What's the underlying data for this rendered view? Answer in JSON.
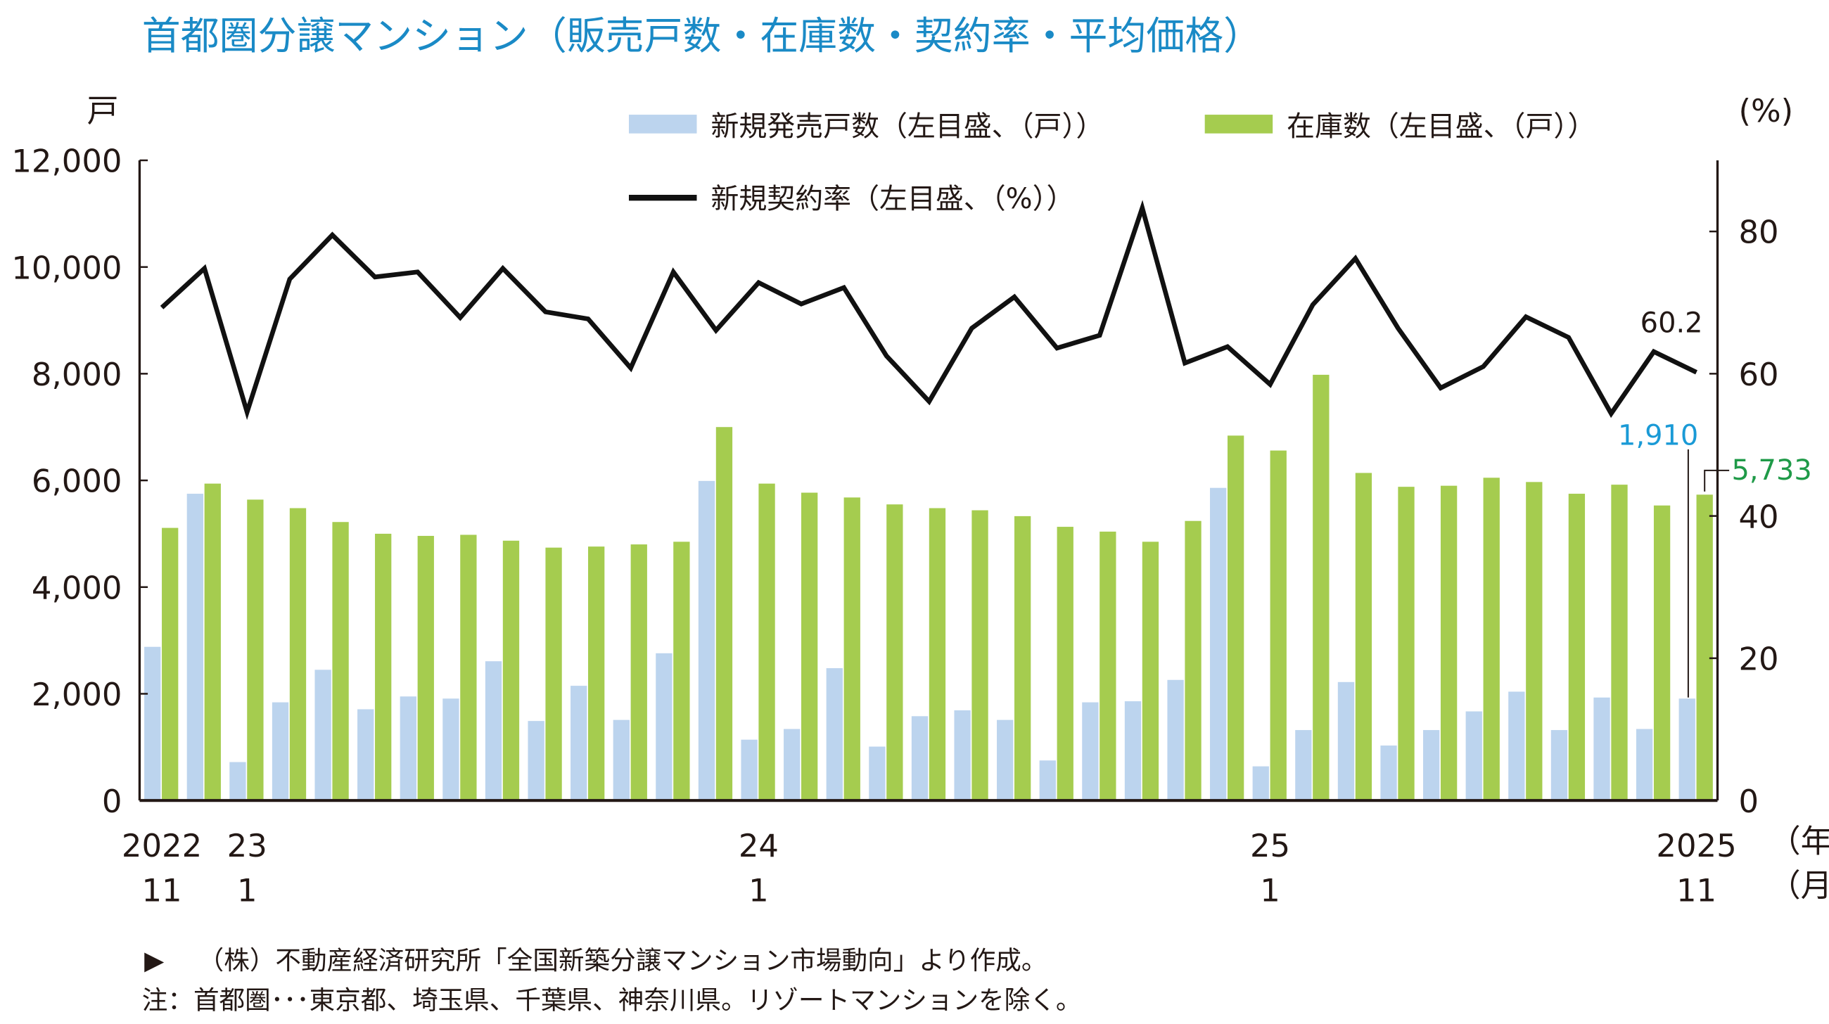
{
  "title": "首都圏分譲マンション（販売戸数・在庫数・契約率・平均価格）",
  "colors": {
    "title": "#1a8ac6",
    "new_sales": "#bcd4ee",
    "inventory": "#a5cc4f",
    "rate": "#111111",
    "new_sales_label": "#1a9ad6",
    "inventory_label": "#1f9a48"
  },
  "chart_data": {
    "type": "bar+line",
    "title": "首都圏分譲マンション（販売戸数・在庫数・契約率・平均価格）",
    "left_axis": {
      "unit": "戸",
      "range": [
        0,
        12000
      ],
      "ticks": [
        "0",
        "2,000",
        "4,000",
        "6,000",
        "8,000",
        "10,000",
        "12,000"
      ]
    },
    "right_axis": {
      "unit": "(%)",
      "range": [
        0,
        90
      ],
      "ticks": [
        "0",
        "20",
        "40",
        "60",
        "80"
      ]
    },
    "x_labels": [
      {
        "index": 0,
        "year": "2022",
        "month": "11"
      },
      {
        "index": 2,
        "year": "23",
        "month": "1"
      },
      {
        "index": 14,
        "year": "24",
        "month": "1"
      },
      {
        "index": 26,
        "year": "25",
        "month": "1"
      },
      {
        "index": 36,
        "year": "2025",
        "month": "11"
      }
    ],
    "x_unit_year": "（年）",
    "x_unit_month": "（月）",
    "legend_placement": "top",
    "grid": false,
    "series": [
      {
        "name": "新規発売戸数（左目盛、（戸））",
        "type": "bar",
        "axis": "left",
        "values": [
          2880,
          5750,
          720,
          1840,
          2450,
          1710,
          1950,
          1910,
          2610,
          1490,
          2150,
          1510,
          2760,
          5990,
          1140,
          1340,
          2480,
          1010,
          1580,
          1690,
          1510,
          750,
          1840,
          1860,
          2260,
          5860,
          640,
          1320,
          2220,
          1030,
          1320,
          1670,
          2040,
          1320,
          1930,
          1340,
          1910
        ]
      },
      {
        "name": "在庫数（左目盛、（戸））",
        "type": "bar",
        "axis": "left",
        "values": [
          5110,
          5940,
          5640,
          5480,
          5220,
          5000,
          4960,
          4980,
          4870,
          4740,
          4760,
          4800,
          4850,
          7000,
          5940,
          5770,
          5680,
          5550,
          5480,
          5440,
          5330,
          5130,
          5040,
          4850,
          5240,
          6840,
          6560,
          7980,
          6140,
          5880,
          5900,
          6050,
          5970,
          5750,
          5920,
          5530,
          5733
        ]
      },
      {
        "name": "新規契約率（左目盛、（%））",
        "type": "line",
        "axis": "right",
        "values": [
          69.3,
          74.8,
          54.6,
          73.3,
          79.5,
          73.6,
          74.3,
          67.9,
          74.8,
          68.7,
          67.7,
          60.8,
          74.3,
          66.1,
          72.8,
          69.8,
          72.1,
          62.5,
          56.1,
          66.4,
          70.8,
          63.6,
          65.4,
          83.3,
          61.5,
          63.8,
          58.5,
          69.7,
          76.2,
          66.4,
          58.0,
          61.0,
          68.0,
          65.1,
          54.4,
          63.1,
          60.2
        ]
      }
    ],
    "annotations": {
      "rate_last": "60.2",
      "new_sales_last": "1,910",
      "inventory_last": "5,733"
    }
  },
  "footnotes": {
    "source_marker": "▶",
    "source": "（株）不動産経済研究所「全国新築分譲マンション市場動向」より作成。",
    "note": "注：首都圏･･･東京都、埼玉県、千葉県、神奈川県。リゾートマンションを除く。"
  }
}
